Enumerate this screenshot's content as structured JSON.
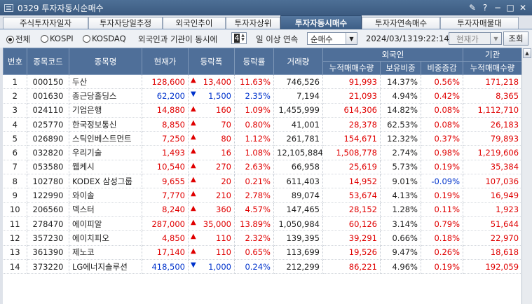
{
  "window": {
    "title": "0329 투자자동시순매수"
  },
  "tabs": [
    {
      "label": "주식투자자일자",
      "active": false
    },
    {
      "label": "투자자당일추정",
      "active": false
    },
    {
      "label": "외국인추이",
      "active": false
    },
    {
      "label": "투자자상위",
      "active": false
    },
    {
      "label": "투자자동시매수",
      "active": true
    },
    {
      "label": "투자자연속매수",
      "active": false
    },
    {
      "label": "투자자매물대",
      "active": false
    }
  ],
  "filter": {
    "market_all": "전체",
    "market_kospi": "KOSPI",
    "market_kosdaq": "KOSDAQ",
    "label_before": "외국인과 기관이 동시에",
    "days": "4",
    "label_after": "일 이상 연속",
    "type_select": "순매수",
    "date": "2024/03/13",
    "time": "19:22:14",
    "price_select": "현재가",
    "query_button": "조회"
  },
  "table": {
    "headers": {
      "no": "번호",
      "code": "종목코드",
      "name": "종목명",
      "price": "현재가",
      "change": "등락폭",
      "rate": "등락률",
      "volume": "거래량",
      "foreign": "외국인",
      "foreign_net": "누적매매수량",
      "foreign_ratio": "보유비중",
      "foreign_ratio_chg": "비중증감",
      "inst": "기관",
      "inst_net": "누적매매수량"
    },
    "rows": [
      {
        "no": "1",
        "code": "000150",
        "name": "두산",
        "price": "128,600",
        "dir": "up",
        "change": "13,400",
        "rate": "11.63%",
        "volume": "746,526",
        "f_net": "91,993",
        "f_ratio": "14.37%",
        "f_chg": "0.56%",
        "i_net": "171,218"
      },
      {
        "no": "2",
        "code": "001630",
        "name": "종근당홀딩스",
        "price": "62,200",
        "dir": "down",
        "change": "1,500",
        "rate": "2.35%",
        "volume": "7,194",
        "f_net": "21,093",
        "f_ratio": "4.94%",
        "f_chg": "0.42%",
        "i_net": "8,365"
      },
      {
        "no": "3",
        "code": "024110",
        "name": "기업은행",
        "price": "14,880",
        "dir": "up",
        "change": "160",
        "rate": "1.09%",
        "volume": "1,455,999",
        "f_net": "614,306",
        "f_ratio": "14.82%",
        "f_chg": "0.08%",
        "i_net": "1,112,710"
      },
      {
        "no": "4",
        "code": "025770",
        "name": "한국정보통신",
        "price": "8,850",
        "dir": "up",
        "change": "70",
        "rate": "0.80%",
        "volume": "41,001",
        "f_net": "28,378",
        "f_ratio": "62.53%",
        "f_chg": "0.08%",
        "i_net": "26,183"
      },
      {
        "no": "5",
        "code": "026890",
        "name": "스틱인베스트먼트",
        "price": "7,250",
        "dir": "up",
        "change": "80",
        "rate": "1.12%",
        "volume": "261,781",
        "f_net": "154,671",
        "f_ratio": "12.32%",
        "f_chg": "0.37%",
        "i_net": "79,893"
      },
      {
        "no": "6",
        "code": "032820",
        "name": "우리기술",
        "price": "1,493",
        "dir": "up",
        "change": "16",
        "rate": "1.08%",
        "volume": "12,105,884",
        "f_net": "1,508,778",
        "f_ratio": "2.74%",
        "f_chg": "0.98%",
        "i_net": "1,219,606"
      },
      {
        "no": "7",
        "code": "053580",
        "name": "웹케시",
        "price": "10,540",
        "dir": "up",
        "change": "270",
        "rate": "2.63%",
        "volume": "66,958",
        "f_net": "25,619",
        "f_ratio": "5.73%",
        "f_chg": "0.19%",
        "i_net": "35,384"
      },
      {
        "no": "8",
        "code": "102780",
        "name": "KODEX 삼성그룹",
        "price": "9,655",
        "dir": "up",
        "change": "20",
        "rate": "0.21%",
        "volume": "611,403",
        "f_net": "14,952",
        "f_ratio": "9.01%",
        "f_chg": "-0.09%",
        "f_chg_neg": true,
        "i_net": "107,036"
      },
      {
        "no": "9",
        "code": "122990",
        "name": "와이솔",
        "price": "7,770",
        "dir": "up",
        "change": "210",
        "rate": "2.78%",
        "volume": "89,074",
        "f_net": "53,674",
        "f_ratio": "4.13%",
        "f_chg": "0.19%",
        "i_net": "16,949"
      },
      {
        "no": "10",
        "code": "206560",
        "name": "덱스터",
        "price": "8,240",
        "dir": "up",
        "change": "360",
        "rate": "4.57%",
        "volume": "147,465",
        "f_net": "28,152",
        "f_ratio": "1.28%",
        "f_chg": "0.11%",
        "i_net": "1,923"
      },
      {
        "no": "11",
        "code": "278470",
        "name": "에이피알",
        "price": "287,000",
        "dir": "up",
        "change": "35,000",
        "rate": "13.89%",
        "volume": "1,050,984",
        "f_net": "60,126",
        "f_ratio": "3.14%",
        "f_chg": "0.79%",
        "i_net": "51,644"
      },
      {
        "no": "12",
        "code": "357230",
        "name": "에이치피오",
        "price": "4,850",
        "dir": "up",
        "change": "110",
        "rate": "2.32%",
        "volume": "139,395",
        "f_net": "39,291",
        "f_ratio": "0.66%",
        "f_chg": "0.18%",
        "i_net": "22,970"
      },
      {
        "no": "13",
        "code": "361390",
        "name": "제노코",
        "price": "17,140",
        "dir": "up",
        "change": "110",
        "rate": "0.65%",
        "volume": "113,699",
        "f_net": "19,526",
        "f_ratio": "9.47%",
        "f_chg": "0.26%",
        "i_net": "18,618"
      },
      {
        "no": "14",
        "code": "373220",
        "name": "LG에너지솔루션",
        "price": "418,500",
        "dir": "down",
        "change": "1,000",
        "rate": "0.24%",
        "volume": "212,299",
        "f_net": "86,221",
        "f_ratio": "4.96%",
        "f_chg": "0.19%",
        "i_net": "192,059"
      }
    ]
  },
  "colors": {
    "up": "#e00000",
    "down": "#0033cc",
    "header": "#4f6f99",
    "active_tab": "#3d5e86"
  },
  "icons": {
    "up": "triangle-up-icon",
    "down": "triangle-down-icon"
  }
}
